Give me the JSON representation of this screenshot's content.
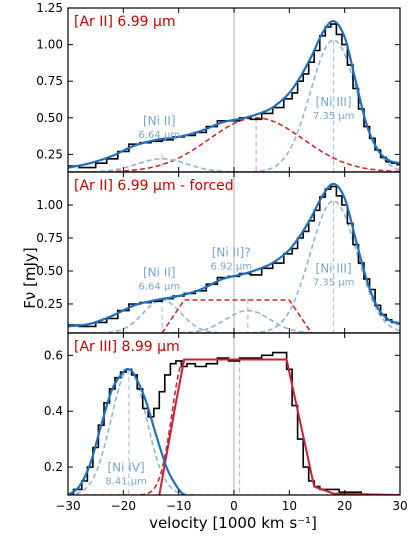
{
  "figure": {
    "ylabel": "Fν [mJy]",
    "xlabel": "velocity [1000 km s⁻¹]",
    "colors": {
      "data": "#000000",
      "fit": "#1f6fbf",
      "argauss": "#d62728",
      "component": "#8fb4d8",
      "line_center_red": "#f4a6ae",
      "line_center_blue": "#a9c6e4",
      "zero_line": "#bfbfbf",
      "title": "#cc0000",
      "label": "#7ba6cf"
    }
  },
  "chart_data": [
    {
      "type": "line",
      "title": "[Ar II] 6.99 μm",
      "xlim": [
        -30,
        30
      ],
      "ylim": [
        0.13,
        1.25
      ],
      "yticks": [
        0.25,
        0.5,
        0.75,
        1.0,
        1.25
      ],
      "ytick_labels": [
        "0.25",
        "0.50",
        "0.75",
        "1.00",
        "1.25"
      ],
      "labels": [
        {
          "id": "ni2",
          "text": "[Ni II]",
          "sub": "6.64 μm",
          "x": -13.5,
          "y": 0.45
        },
        {
          "id": "ni3",
          "text": "[Ni III]",
          "sub": "7.35 μm",
          "x": 18,
          "y": 0.58
        }
      ],
      "vlines": [
        {
          "x": 0,
          "color": "zero_line",
          "y0": 0.13,
          "y1": 1.25,
          "dash": false
        },
        {
          "x": 4,
          "color": "line_center_red",
          "y0": 0.13,
          "y1": 0.5,
          "dash": true
        },
        {
          "x": -13,
          "color": "line_center_blue",
          "y0": 0.13,
          "y1": 0.25,
          "dash": true
        },
        {
          "x": 18,
          "color": "line_center_blue",
          "y0": 0.13,
          "y1": 1.03,
          "dash": true
        }
      ],
      "data": {
        "x": [
          -30,
          -26,
          -24,
          -22,
          -20,
          -18,
          -16,
          -14,
          -12,
          -10,
          -8,
          -6,
          -4,
          -2,
          0,
          2,
          4,
          6,
          8,
          10,
          11,
          12,
          13,
          14,
          15,
          16,
          17,
          18,
          19,
          20,
          21,
          22,
          23,
          24,
          25,
          26,
          27,
          28,
          29,
          30
        ],
        "y": [
          0.17,
          0.16,
          0.19,
          0.22,
          0.27,
          0.32,
          0.33,
          0.34,
          0.35,
          0.37,
          0.38,
          0.4,
          0.44,
          0.48,
          0.48,
          0.5,
          0.49,
          0.53,
          0.57,
          0.63,
          0.67,
          0.75,
          0.8,
          0.88,
          0.96,
          1.06,
          1.12,
          1.14,
          1.07,
          1.0,
          0.86,
          0.7,
          0.56,
          0.44,
          0.36,
          0.28,
          0.23,
          0.2,
          0.19,
          0.18
        ]
      },
      "fit": {
        "x": [
          -30,
          -26,
          -22,
          -18,
          -14,
          -10,
          -6,
          -2,
          2,
          6,
          8,
          10,
          12,
          14,
          16,
          18,
          20,
          22,
          24,
          26,
          28,
          30
        ],
        "y": [
          0.16,
          0.19,
          0.24,
          0.31,
          0.35,
          0.37,
          0.41,
          0.47,
          0.5,
          0.55,
          0.6,
          0.67,
          0.78,
          0.92,
          1.08,
          1.16,
          1.05,
          0.75,
          0.45,
          0.28,
          0.21,
          0.19
        ]
      },
      "gaussians": [
        {
          "kind": "argauss",
          "amp": 0.37,
          "mu": 4,
          "sigma": 8.5,
          "base": 0.13
        },
        {
          "kind": "component",
          "amp": 0.09,
          "mu": -13,
          "sigma": 4.5,
          "base": 0.13
        },
        {
          "kind": "component",
          "amp": 0.9,
          "mu": 18,
          "sigma": 4.2,
          "base": 0.13
        }
      ]
    },
    {
      "type": "line",
      "title": "[Ar II] 6.99 μm - forced",
      "xlim": [
        -30,
        30
      ],
      "ylim": [
        0.03,
        1.25
      ],
      "yticks": [
        0.25,
        0.5,
        0.75,
        1.0
      ],
      "ytick_labels": [
        "0.25",
        "0.50",
        "0.75",
        "1.00"
      ],
      "labels": [
        {
          "id": "ni2",
          "text": "[Ni II]",
          "sub": "6.64 μm",
          "x": -13.5,
          "y": 0.46
        },
        {
          "id": "ni2q",
          "text": "[Ni II]?",
          "sub": "6.92 μm",
          "x": -0.5,
          "y": 0.61
        },
        {
          "id": "ni3",
          "text": "[Ni III]",
          "sub": "7.35 μm",
          "x": 18,
          "y": 0.49
        }
      ],
      "vlines": [
        {
          "x": 0,
          "color": "zero_line",
          "y0": 0.03,
          "y1": 1.25,
          "dash": false
        },
        {
          "x": -13,
          "color": "line_center_blue",
          "y0": 0.03,
          "y1": 0.29,
          "dash": true
        },
        {
          "x": 2.5,
          "color": "line_center_red",
          "y0": 0.03,
          "y1": 0.29,
          "dash": true
        },
        {
          "x": 18,
          "color": "line_center_blue",
          "y0": 0.03,
          "y1": 1.03,
          "dash": true
        }
      ],
      "data": {
        "x": [
          -30,
          -26,
          -24,
          -22,
          -20,
          -18,
          -16,
          -14,
          -12,
          -10,
          -8,
          -6,
          -4,
          -2,
          0,
          2,
          4,
          6,
          8,
          10,
          11,
          12,
          13,
          14,
          15,
          16,
          17,
          18,
          19,
          20,
          21,
          22,
          23,
          24,
          25,
          26,
          27,
          28,
          29,
          30
        ],
        "y": [
          0.09,
          0.08,
          0.11,
          0.14,
          0.2,
          0.25,
          0.26,
          0.27,
          0.29,
          0.31,
          0.33,
          0.35,
          0.4,
          0.45,
          0.46,
          0.48,
          0.47,
          0.52,
          0.56,
          0.63,
          0.67,
          0.75,
          0.8,
          0.88,
          0.96,
          1.06,
          1.12,
          1.14,
          1.07,
          1.0,
          0.86,
          0.7,
          0.56,
          0.44,
          0.36,
          0.24,
          0.17,
          0.13,
          0.11,
          0.1
        ]
      },
      "fit": {
        "x": [
          -30,
          -26,
          -22,
          -18,
          -14,
          -10,
          -6,
          -2,
          2,
          6,
          8,
          10,
          12,
          14,
          16,
          18,
          20,
          22,
          24,
          26,
          28,
          30
        ],
        "y": [
          0.08,
          0.1,
          0.16,
          0.24,
          0.28,
          0.31,
          0.36,
          0.44,
          0.48,
          0.54,
          0.59,
          0.66,
          0.77,
          0.91,
          1.07,
          1.16,
          1.05,
          0.74,
          0.43,
          0.22,
          0.13,
          0.1
        ]
      },
      "trapezoid": {
        "x": [
          -13,
          -9,
          10,
          14
        ],
        "y": [
          0.03,
          0.28,
          0.28,
          0.03
        ]
      },
      "gaussians": [
        {
          "kind": "component",
          "amp": 0.25,
          "mu": -13,
          "sigma": 3.4,
          "base": 0.03
        },
        {
          "kind": "component",
          "amp": 0.17,
          "mu": 2.5,
          "sigma": 4.0,
          "base": 0.03
        },
        {
          "kind": "component",
          "amp": 1.0,
          "mu": 18,
          "sigma": 4.2,
          "base": 0.03
        }
      ]
    },
    {
      "type": "line",
      "title": "[Ar III] 8.99 μm",
      "xlim": [
        -30,
        30
      ],
      "ylim": [
        0.1,
        0.68
      ],
      "yticks": [
        0.2,
        0.4,
        0.6
      ],
      "ytick_labels": [
        "0.2",
        "0.4",
        "0.6"
      ],
      "labels": [
        {
          "id": "ni4",
          "text": "[Ni IV]",
          "sub": "8.41 μm",
          "x": -19.5,
          "y": 0.185
        }
      ],
      "vlines": [
        {
          "x": 0,
          "color": "zero_line",
          "y0": 0.1,
          "y1": 0.68,
          "dash": false
        },
        {
          "x": 1,
          "color": "line_center_red",
          "y0": 0.1,
          "y1": 0.585,
          "dash": true
        },
        {
          "x": -19,
          "color": "line_center_blue",
          "y0": 0.1,
          "y1": 0.55,
          "dash": true
        }
      ],
      "data": {
        "x": [
          -30,
          -28,
          -27,
          -26,
          -25,
          -24,
          -23,
          -22,
          -21,
          -20,
          -19,
          -18,
          -17,
          -16,
          -15,
          -14,
          -13,
          -12,
          -11,
          -10,
          -9,
          -8,
          -6,
          -4,
          -2,
          0,
          2,
          4,
          6,
          8,
          9,
          10,
          11,
          12,
          13,
          14,
          15,
          16,
          18,
          20,
          22,
          24,
          26,
          28,
          30
        ],
        "y": [
          0.1,
          0.12,
          0.15,
          0.2,
          0.27,
          0.35,
          0.43,
          0.48,
          0.52,
          0.54,
          0.55,
          0.53,
          0.48,
          0.41,
          0.38,
          0.41,
          0.47,
          0.53,
          0.57,
          0.58,
          0.56,
          0.57,
          0.56,
          0.57,
          0.59,
          0.58,
          0.59,
          0.59,
          0.6,
          0.61,
          0.61,
          0.55,
          0.42,
          0.3,
          0.2,
          0.15,
          0.13,
          0.12,
          0.12,
          0.11,
          0.11,
          0.1,
          0.1,
          0.1,
          0.1
        ]
      },
      "fit": {
        "x": [
          -30,
          -28,
          -26,
          -24,
          -22,
          -20,
          -19,
          -18,
          -16,
          -14,
          -12,
          -10,
          -9
        ],
        "y": [
          0.1,
          0.13,
          0.21,
          0.35,
          0.48,
          0.54,
          0.55,
          0.53,
          0.44,
          0.31,
          0.19,
          0.12,
          0.1
        ]
      },
      "ar_fit": {
        "x": [
          -13.5,
          -10.5,
          -9,
          9.5,
          14.5,
          18,
          30
        ],
        "y": [
          0.1,
          0.43,
          0.585,
          0.585,
          0.13,
          0.105,
          0.1
        ]
      },
      "gaussians": [
        {
          "kind": "component",
          "amp": 0.45,
          "mu": -19,
          "sigma": 3.2,
          "base": 0.1
        },
        {
          "kind": "argauss_left",
          "amp": 0.485,
          "mu": -9,
          "sigma": 2.2,
          "base": 0.1
        }
      ]
    }
  ],
  "xaxis": {
    "ticks": [
      -30,
      -20,
      -10,
      0,
      10,
      20,
      30
    ],
    "tick_labels": [
      "−30",
      "−20",
      "−10",
      "0",
      "10",
      "20",
      "30"
    ]
  }
}
